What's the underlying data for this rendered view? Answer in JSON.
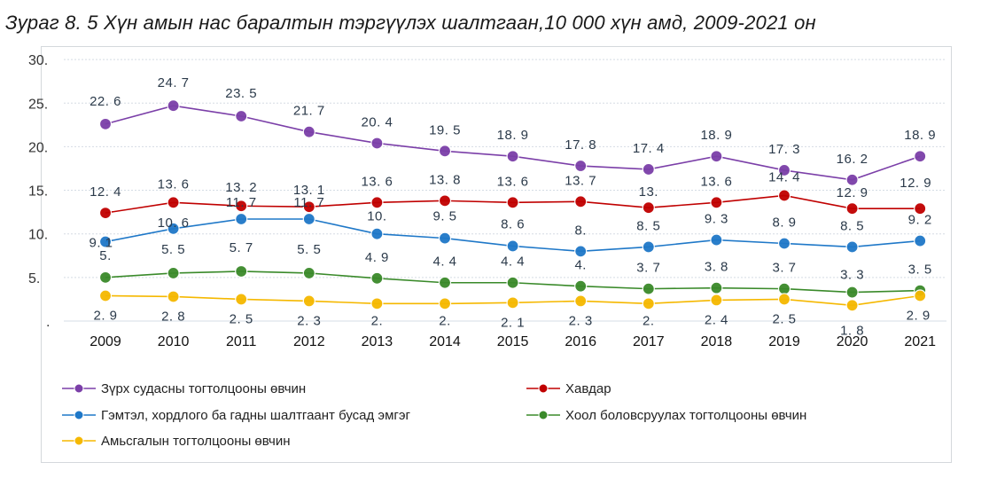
{
  "chart_data": {
    "type": "line",
    "title": "Зураг 8. 5 Хүн амын нас баралтын тэргүүлэх шалтгаан,10 000 хүн амд, 2009-2021 он",
    "xlabel": "",
    "ylabel": "",
    "ylim": [
      0,
      30
    ],
    "y_ticks": [
      "30.",
      "25.",
      "20.",
      "15.",
      "10.",
      "5.",
      "."
    ],
    "categories": [
      "2009",
      "2010",
      "2011",
      "2012",
      "2013",
      "2014",
      "2015",
      "2016",
      "2017",
      "2018",
      "2019",
      "2020",
      "2021"
    ],
    "grid": true,
    "legend_position": "bottom",
    "series": [
      {
        "name": "Зүрх судасны тогтолцооны өвчин",
        "color": "#7b3fa8",
        "values": [
          22.6,
          24.7,
          23.5,
          21.7,
          20.4,
          19.5,
          18.9,
          17.8,
          17.4,
          18.9,
          17.3,
          16.2,
          18.9
        ],
        "labels": [
          "22. 6",
          "24. 7",
          "23. 5",
          "21. 7",
          "20. 4",
          "19. 5",
          "18. 9",
          "17. 8",
          "17. 4",
          "18. 9",
          "17. 3",
          "16. 2",
          "18. 9"
        ]
      },
      {
        "name": "Хавдар",
        "color": "#c00000",
        "values": [
          12.4,
          13.6,
          13.2,
          13.1,
          13.6,
          13.8,
          13.6,
          13.7,
          13.0,
          13.6,
          14.4,
          12.9,
          12.9
        ],
        "labels": [
          "12. 4",
          "13. 6",
          "13. 2",
          "13. 1",
          "13. 6",
          "13. 8",
          "13. 6",
          "13. 7",
          "13.",
          "13. 6",
          "14. 4",
          "12. 9",
          "12. 9"
        ]
      },
      {
        "name": "Гэмтэл, хордлого ба гадны шалтгаант бусад эмгэг",
        "color": "#1f78c8",
        "values": [
          9.1,
          10.6,
          11.7,
          11.7,
          10.0,
          9.5,
          8.6,
          8.0,
          8.5,
          9.3,
          8.9,
          8.5,
          9.2
        ],
        "labels": [
          "9. 1",
          "10. 6",
          "11. 7",
          "11. 7",
          "10.",
          "9. 5",
          "8. 6",
          "8.",
          "8. 5",
          "9. 3",
          "8. 9",
          "8. 5",
          "9. 2"
        ]
      },
      {
        "name": "Хоол боловсруулах тогтолцооны өвчин",
        "color": "#3a8a2a",
        "values": [
          5.0,
          5.5,
          5.7,
          5.5,
          4.9,
          4.4,
          4.4,
          4.0,
          3.7,
          3.8,
          3.7,
          3.3,
          3.5
        ],
        "labels": [
          "5.",
          "5. 5",
          "5. 7",
          "5. 5",
          "4. 9",
          "4. 4",
          "4. 4",
          "4.",
          "3. 7",
          "3. 8",
          "3. 7",
          "3. 3",
          "3. 5"
        ]
      },
      {
        "name": "Амьсгалын тогтолцооны өвчин",
        "color": "#f5b800",
        "values": [
          2.9,
          2.8,
          2.5,
          2.3,
          2.0,
          2.0,
          2.1,
          2.3,
          2.0,
          2.4,
          2.5,
          1.8,
          2.9
        ],
        "labels": [
          "2. 9",
          "2. 8",
          "2. 5",
          "2. 3",
          "2.",
          "2.",
          "2. 1",
          "2. 3",
          "2.",
          "2. 4",
          "2. 5",
          "1. 8",
          "2. 9"
        ]
      }
    ]
  }
}
